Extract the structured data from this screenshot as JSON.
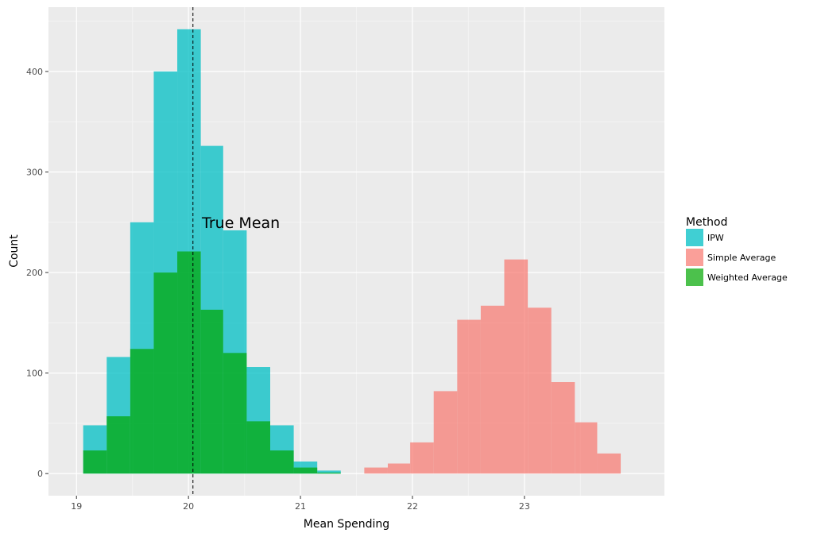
{
  "chart_data": {
    "type": "bar",
    "subtype": "histogram",
    "xlabel": "Mean Spending",
    "ylabel": "Count",
    "xlim": [
      18.75,
      24.25
    ],
    "ylim": [
      -22,
      464
    ],
    "x_ticks": [
      19,
      20,
      21,
      22,
      23
    ],
    "y_ticks": [
      0,
      100,
      200,
      300,
      400
    ],
    "grid": true,
    "legend": {
      "title": "Method",
      "position": "right"
    },
    "colors": {
      "panel": "#ebebeb",
      "grid_major": "#ffffff",
      "grid_minor": "#f3f3f3"
    },
    "reference_line": {
      "x": 20.04,
      "style": "dashed",
      "color": "#000000",
      "label": "True Mean",
      "label_x": 20.12,
      "label_y": 250
    },
    "bin_width": 0.2087,
    "series": [
      {
        "name": "IPW",
        "color": "#00bfc4",
        "opacity": 0.75,
        "bins": [
          {
            "x0": 19.06,
            "x1": 19.27,
            "count": 48
          },
          {
            "x0": 19.27,
            "x1": 19.48,
            "count": 116
          },
          {
            "x0": 19.48,
            "x1": 19.69,
            "count": 250
          },
          {
            "x0": 19.69,
            "x1": 19.9,
            "count": 400
          },
          {
            "x0": 19.9,
            "x1": 20.11,
            "count": 442
          },
          {
            "x0": 20.11,
            "x1": 20.31,
            "count": 326
          },
          {
            "x0": 20.31,
            "x1": 20.52,
            "count": 242
          },
          {
            "x0": 20.52,
            "x1": 20.73,
            "count": 106
          },
          {
            "x0": 20.73,
            "x1": 20.94,
            "count": 48
          },
          {
            "x0": 20.94,
            "x1": 21.15,
            "count": 12
          },
          {
            "x0": 21.15,
            "x1": 21.36,
            "count": 3
          }
        ]
      },
      {
        "name": "Simple Average",
        "color": "#f8766d",
        "opacity": 0.7,
        "bins": [
          {
            "x0": 21.57,
            "x1": 21.78,
            "count": 6
          },
          {
            "x0": 21.78,
            "x1": 21.98,
            "count": 10
          },
          {
            "x0": 21.98,
            "x1": 22.19,
            "count": 31
          },
          {
            "x0": 22.19,
            "x1": 22.4,
            "count": 82
          },
          {
            "x0": 22.4,
            "x1": 22.61,
            "count": 153
          },
          {
            "x0": 22.61,
            "x1": 22.82,
            "count": 167
          },
          {
            "x0": 22.82,
            "x1": 23.03,
            "count": 213
          },
          {
            "x0": 23.03,
            "x1": 23.24,
            "count": 165
          },
          {
            "x0": 23.24,
            "x1": 23.45,
            "count": 91
          },
          {
            "x0": 23.45,
            "x1": 23.65,
            "count": 51
          },
          {
            "x0": 23.65,
            "x1": 23.86,
            "count": 20
          }
        ]
      },
      {
        "name": "Weighted Average",
        "color": "#00a600",
        "opacity": 0.7,
        "bins": [
          {
            "x0": 19.06,
            "x1": 19.27,
            "count": 23
          },
          {
            "x0": 19.27,
            "x1": 19.48,
            "count": 57
          },
          {
            "x0": 19.48,
            "x1": 19.69,
            "count": 124
          },
          {
            "x0": 19.69,
            "x1": 19.9,
            "count": 200
          },
          {
            "x0": 19.9,
            "x1": 20.11,
            "count": 221
          },
          {
            "x0": 20.11,
            "x1": 20.31,
            "count": 163
          },
          {
            "x0": 20.31,
            "x1": 20.52,
            "count": 120
          },
          {
            "x0": 20.52,
            "x1": 20.73,
            "count": 52
          },
          {
            "x0": 20.73,
            "x1": 20.94,
            "count": 23
          },
          {
            "x0": 20.94,
            "x1": 21.15,
            "count": 6
          },
          {
            "x0": 21.15,
            "x1": 21.36,
            "count": 1
          }
        ]
      }
    ]
  }
}
